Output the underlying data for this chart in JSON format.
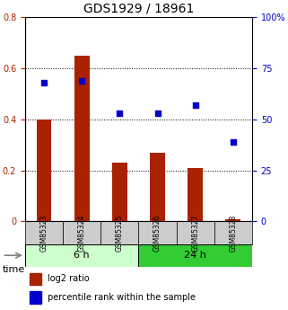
{
  "title": "GDS1929 / 18961",
  "samples": [
    "GSM85323",
    "GSM85324",
    "GSM85325",
    "GSM85326",
    "GSM85327",
    "GSM85328"
  ],
  "log2_ratio": [
    0.4,
    0.65,
    0.23,
    0.27,
    0.21,
    0.01
  ],
  "percentile_rank": [
    0.68,
    0.69,
    0.53,
    0.53,
    0.57,
    0.39
  ],
  "bar_color": "#aa2200",
  "dot_color": "#0000cc",
  "left_ylim": [
    0,
    0.8
  ],
  "right_ylim": [
    0,
    100
  ],
  "left_yticks": [
    0,
    0.2,
    0.4,
    0.6,
    0.8
  ],
  "left_yticklabels": [
    "0",
    "0.2",
    "0.4",
    "0.6",
    "0.8"
  ],
  "right_yticks": [
    0,
    25,
    50,
    75,
    100
  ],
  "right_yticklabels": [
    "0",
    "25",
    "50",
    "75",
    "100%"
  ],
  "groups": [
    {
      "label": "6 h",
      "indices": [
        0,
        1,
        2
      ],
      "color_light": "#ccffcc",
      "color_dark": "#55dd55"
    },
    {
      "label": "24 h",
      "indices": [
        3,
        4,
        5
      ],
      "color_light": "#ccffcc",
      "color_dark": "#33cc33"
    }
  ],
  "time_label": "time",
  "legend_items": [
    {
      "label": "log2 ratio",
      "color": "#aa2200"
    },
    {
      "label": "percentile rank within the sample",
      "color": "#0000cc"
    }
  ],
  "bg_color": "#ffffff",
  "grid_color": "#000000",
  "bar_width": 0.4,
  "sample_bg_color": "#cccccc"
}
